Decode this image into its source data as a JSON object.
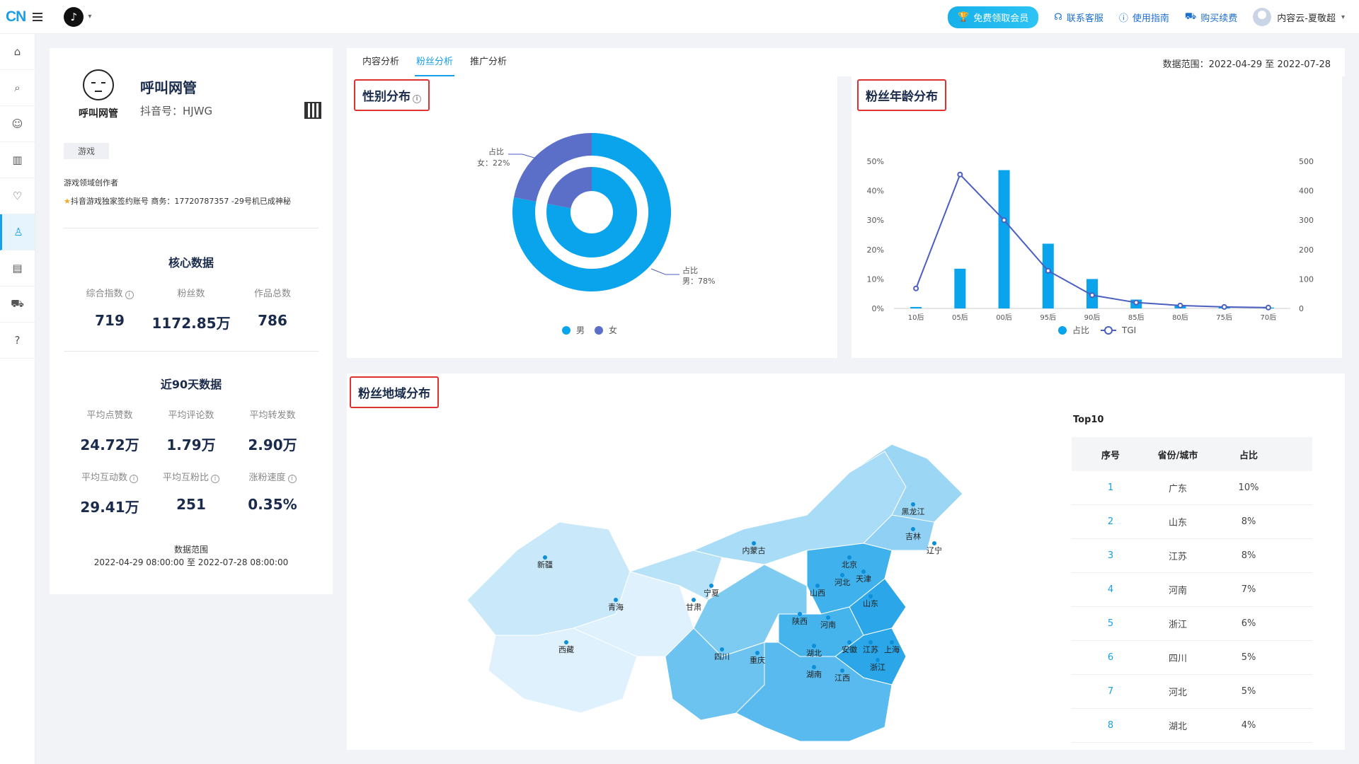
{
  "topbar": {
    "logo_text": "CN",
    "vip_label": "免费领取会员",
    "support_label": "联系客服",
    "guide_label": "使用指南",
    "buy_label": "购买续费",
    "user_label": "内容云-夏敬超"
  },
  "sidebar": {
    "items": [
      "home-icon",
      "search-data-icon",
      "account-icon",
      "bar-chart-icon",
      "heart-icon",
      "user-icon",
      "document-icon",
      "cart-icon",
      "help-icon"
    ],
    "active_index": 5
  },
  "profile": {
    "avatar_text": "呼叫网管",
    "name": "呼叫网管",
    "douyin_id": "抖音号：HJWG",
    "tag": "游戏",
    "desc1": "游戏领域创作者",
    "desc2": "抖音游戏独家签约账号 商务：17720787357 -29号机已成神秘",
    "core_title": "核心数据",
    "core": [
      {
        "label": "综合指数",
        "value": "719",
        "info": true
      },
      {
        "label": "粉丝数",
        "value": "1172.85万",
        "info": false
      },
      {
        "label": "作品总数",
        "value": "786",
        "info": false
      }
    ],
    "recent_title": "近90天数据",
    "recent": [
      {
        "label": "平均点赞数",
        "value": "24.72万",
        "info": false
      },
      {
        "label": "平均评论数",
        "value": "1.79万",
        "info": false
      },
      {
        "label": "平均转发数",
        "value": "2.90万",
        "info": false
      },
      {
        "label": "平均互动数",
        "value": "29.41万",
        "info": true
      },
      {
        "label": "平均互粉比",
        "value": "251",
        "info": true
      },
      {
        "label": "涨粉速度",
        "value": "0.35%",
        "info": true
      }
    ],
    "range_label": "数据范围",
    "range_value": "2022-04-29 08:00:00 至 2022-07-28 08:00:00"
  },
  "tabs": [
    "内容分析",
    "粉丝分析",
    "推广分析"
  ],
  "active_tab": 1,
  "data_range": "数据范围：2022-04-29 至 2022-07-28",
  "gender": {
    "title": "性别分布",
    "male_label": "男",
    "female_label": "女",
    "male_callout": "男：78%",
    "female_callout": "女：22%",
    "ratio_label": "占比",
    "colors": {
      "male": "#0aa4ec",
      "female": "#5b6fc8"
    }
  },
  "age": {
    "title": "粉丝年龄分布",
    "legend_bar": "占比",
    "legend_line": "TGI"
  },
  "region": {
    "title": "粉丝地域分布",
    "top10_title": "Top10",
    "headers": [
      "序号",
      "省份/城市",
      "占比"
    ],
    "rows": [
      {
        "idx": "1",
        "name": "广东",
        "pct": "10%"
      },
      {
        "idx": "2",
        "name": "山东",
        "pct": "8%"
      },
      {
        "idx": "3",
        "name": "江苏",
        "pct": "8%"
      },
      {
        "idx": "4",
        "name": "河南",
        "pct": "7%"
      },
      {
        "idx": "5",
        "name": "浙江",
        "pct": "6%"
      },
      {
        "idx": "6",
        "name": "四川",
        "pct": "5%"
      },
      {
        "idx": "7",
        "name": "河北",
        "pct": "5%"
      },
      {
        "idx": "8",
        "name": "湖北",
        "pct": "4%"
      }
    ],
    "map_labels": [
      "新疆",
      "西藏",
      "青海",
      "甘肃",
      "宁夏",
      "内蒙古",
      "黑龙江",
      "吉林",
      "辽宁",
      "北京",
      "天津",
      "河北",
      "山西",
      "陕西",
      "山东",
      "河南",
      "江苏",
      "上海",
      "安徽",
      "湖北",
      "四川",
      "重庆",
      "浙江",
      "湖南",
      "江西"
    ]
  },
  "chart_data": [
    {
      "type": "pie",
      "title": "性别分布",
      "series": [
        {
          "name": "占比",
          "values": [
            {
              "label": "男",
              "value": 78
            },
            {
              "label": "女",
              "value": 22
            }
          ]
        }
      ]
    },
    {
      "type": "bar",
      "title": "粉丝年龄分布",
      "categories": [
        "10后",
        "05后",
        "00后",
        "95后",
        "90后",
        "85后",
        "80后",
        "75后",
        "70后"
      ],
      "series": [
        {
          "name": "占比",
          "type": "bar",
          "values": [
            0.5,
            13.5,
            47,
            22,
            10,
            3,
            1,
            0.5,
            0.3
          ]
        },
        {
          "name": "TGI",
          "type": "line",
          "values": [
            68,
            455,
            300,
            128,
            45,
            20,
            10,
            5,
            3
          ]
        }
      ],
      "ylim": [
        0,
        50
      ],
      "y2lim": [
        0,
        500
      ],
      "yticks": [
        "0%",
        "10%",
        "20%",
        "30%",
        "40%",
        "50%"
      ],
      "y2ticks": [
        "0",
        "100",
        "200",
        "300",
        "400",
        "500"
      ]
    }
  ]
}
